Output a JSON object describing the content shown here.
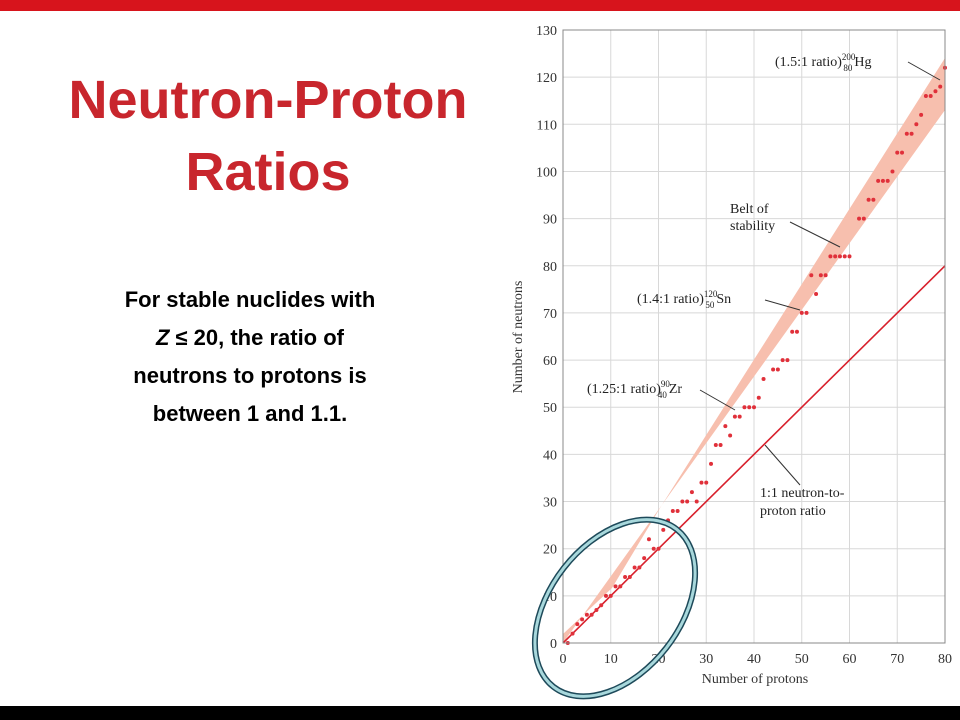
{
  "slide": {
    "title_lines": [
      "Neutron-Proton",
      "Ratios"
    ],
    "body": {
      "line1": "For stable nuclides with",
      "line2_italic": "Z",
      "line2_rest": "≤ 20, the ratio of",
      "line3": "neutrons to protons is",
      "line4": "between 1 and 1.1."
    }
  },
  "chart_data": {
    "type": "scatter",
    "xlabel": "Number of protons",
    "ylabel": "Number of neutrons",
    "xlim": [
      0,
      80
    ],
    "ylim": [
      0,
      130
    ],
    "xticks": [
      0,
      10,
      20,
      30,
      40,
      50,
      60,
      70,
      80
    ],
    "yticks": [
      0,
      10,
      20,
      30,
      40,
      50,
      60,
      70,
      80,
      90,
      100,
      110,
      120,
      130
    ],
    "grid": true,
    "color": "#e0303a",
    "x": [
      1,
      2,
      3,
      4,
      5,
      6,
      7,
      8,
      9,
      10,
      11,
      12,
      13,
      14,
      15,
      16,
      17,
      18,
      19,
      20,
      21,
      22,
      23,
      24,
      25,
      26,
      27,
      28,
      29,
      30,
      31,
      32,
      33,
      34,
      35,
      36,
      37,
      38,
      39,
      40,
      41,
      42,
      44,
      45,
      46,
      47,
      48,
      49,
      50,
      51,
      52,
      53,
      54,
      55,
      56,
      57,
      58,
      59,
      60,
      62,
      63,
      64,
      65,
      66,
      67,
      68,
      69,
      70,
      71,
      72,
      73,
      74,
      75,
      76,
      77,
      78,
      79,
      80
    ],
    "values": [
      0,
      2,
      4,
      5,
      6,
      6,
      7,
      8,
      10,
      10,
      12,
      12,
      14,
      14,
      16,
      16,
      18,
      22,
      20,
      20,
      24,
      26,
      28,
      28,
      30,
      30,
      32,
      30,
      34,
      34,
      38,
      42,
      42,
      46,
      44,
      48,
      48,
      50,
      50,
      50,
      52,
      56,
      58,
      58,
      60,
      60,
      66,
      66,
      70,
      70,
      78,
      74,
      78,
      78,
      82,
      82,
      82,
      82,
      82,
      90,
      90,
      94,
      94,
      98,
      98,
      98,
      100,
      104,
      104,
      108,
      108,
      110,
      112,
      116,
      116,
      117,
      118,
      122
    ],
    "reference_line": {
      "x": [
        0,
        80
      ],
      "values": [
        0,
        80
      ],
      "color": "#d8202c"
    },
    "annotations": [
      {
        "text": "(1.5:1 ratio)",
        "mass": "200",
        "atomic": "80",
        "symbol": "Hg"
      },
      {
        "text": "(1.4:1 ratio)",
        "mass": "120",
        "atomic": "50",
        "symbol": "Sn"
      },
      {
        "text": "(1.25:1 ratio)",
        "mass": "90",
        "atomic": "40",
        "symbol": "Zr"
      }
    ],
    "belt_label": [
      "Belt of",
      "stability"
    ],
    "line_label": [
      "1:1 neutron-to-",
      "proton ratio"
    ]
  }
}
